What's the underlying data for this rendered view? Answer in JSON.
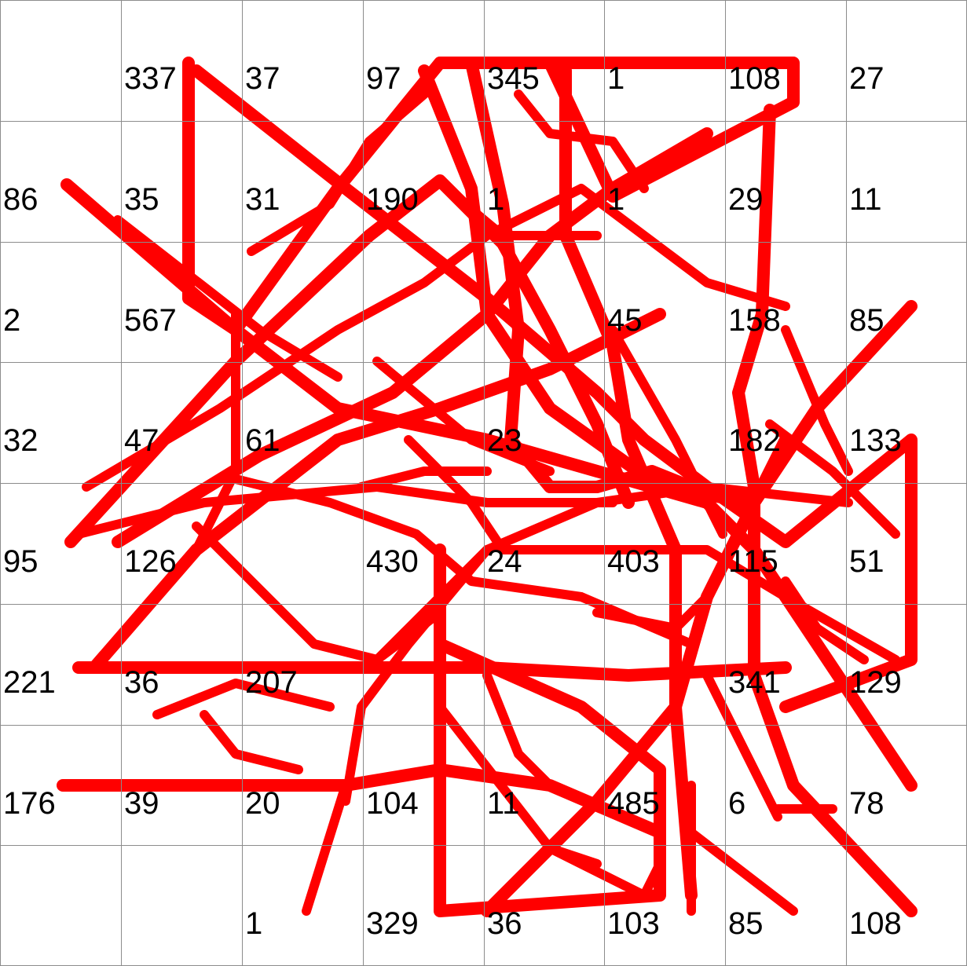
{
  "grid": {
    "rows": 8,
    "cols": 8,
    "line_color": "#8c8c8c",
    "cells": [
      [
        "",
        "337",
        "37",
        "97",
        "345",
        "1",
        "108",
        "27"
      ],
      [
        "86",
        "35",
        "31",
        "190",
        "1",
        "1",
        "29",
        "11"
      ],
      [
        "2",
        "567",
        "",
        "",
        "",
        "45",
        "158",
        "85"
      ],
      [
        "32",
        "47",
        "61",
        "",
        "23",
        "",
        "182",
        "133"
      ],
      [
        "95",
        "126",
        "",
        "430",
        "24",
        "403",
        "115",
        "51"
      ],
      [
        "221",
        "36",
        "207",
        "",
        "",
        "",
        "341",
        "129"
      ],
      [
        "176",
        "39",
        "20",
        "104",
        "11",
        "485",
        "6",
        "78"
      ],
      [
        "",
        "",
        "1",
        "329",
        "36",
        "103",
        "85",
        "108"
      ]
    ]
  },
  "trace": {
    "color": "#ff0000"
  }
}
